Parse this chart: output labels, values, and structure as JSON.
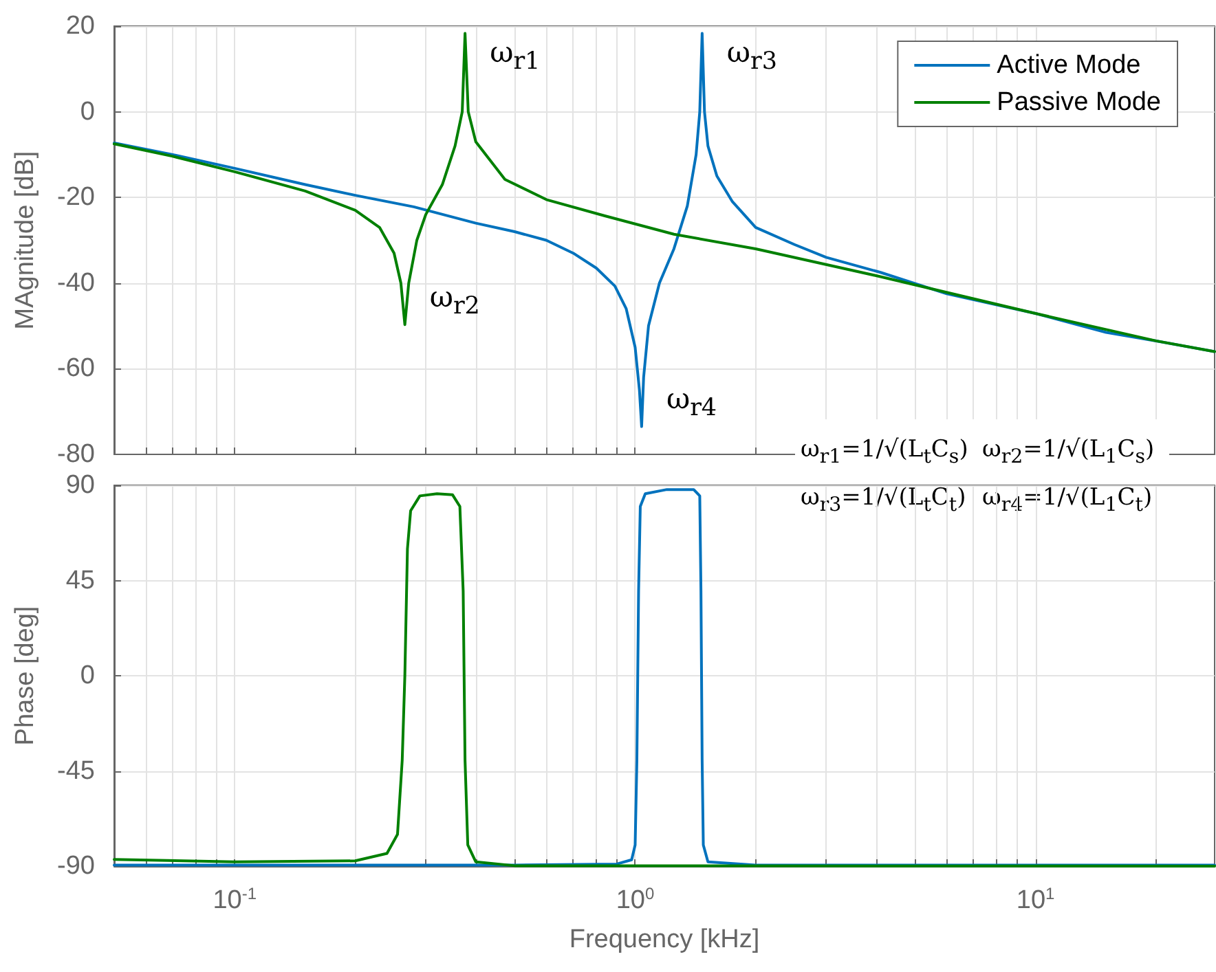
{
  "chart_data": [
    {
      "type": "line",
      "ylabel": "MAgnitude [dB]",
      "xlim": [
        0.05,
        28
      ],
      "ylim": [
        -80,
        20
      ],
      "log": "x",
      "grid": true,
      "legend": "top right",
      "tick_labels": "y",
      "line_style": "solid",
      "marker": "none",
      "yticks": [
        -80,
        -60,
        -40,
        -20,
        0,
        20
      ],
      "xticks": [
        {
          "value": 0.05,
          "label": null
        },
        {
          "value": 0.06,
          "label": null
        },
        {
          "value": 0.07,
          "label": null
        },
        {
          "value": 0.08,
          "label": null
        },
        {
          "value": 0.09,
          "label": null
        },
        {
          "value": 0.1,
          "label": null
        },
        {
          "value": 0.2,
          "label": null
        },
        {
          "value": 0.3,
          "label": null
        },
        {
          "value": 0.4,
          "label": null
        },
        {
          "value": 0.5,
          "label": null
        },
        {
          "value": 0.6,
          "label": null
        },
        {
          "value": 0.7,
          "label": null
        },
        {
          "value": 0.8,
          "label": null
        },
        {
          "value": 0.9,
          "label": null
        },
        {
          "value": 1,
          "label": null
        },
        {
          "value": 2,
          "label": null
        },
        {
          "value": 3,
          "label": null
        },
        {
          "value": 4,
          "label": null
        },
        {
          "value": 5,
          "label": null
        },
        {
          "value": 6,
          "label": null
        },
        {
          "value": 7,
          "label": null
        },
        {
          "value": 8,
          "label": null
        },
        {
          "value": 9,
          "label": null
        },
        {
          "value": 10,
          "label": null
        },
        {
          "value": 20,
          "label": null
        }
      ],
      "series": [
        {
          "name": "Active Mode",
          "color": "#0072bd",
          "x": [
            0.05,
            0.07,
            0.1,
            0.15,
            0.2,
            0.28,
            0.4,
            0.5,
            0.6,
            0.7,
            0.8,
            0.89,
            0.95,
            1.0,
            1.025,
            1.038,
            1.05,
            1.08,
            1.15,
            1.25,
            1.35,
            1.42,
            1.45,
            1.47,
            1.49,
            1.52,
            1.6,
            1.75,
            2.0,
            2.5,
            3,
            4.1,
            6,
            10,
            15,
            20,
            28
          ],
          "values": [
            -7.3,
            -10,
            -13.2,
            -17,
            -19.5,
            -22.2,
            -26,
            -28,
            -30,
            -33,
            -36.5,
            -40.7,
            -46,
            -55,
            -65,
            -73.5,
            -62,
            -50,
            -40,
            -32,
            -22,
            -10,
            0,
            18.3,
            0,
            -8,
            -15,
            -21,
            -27,
            -31,
            -34,
            -37.5,
            -42.5,
            -47.1,
            -51.5,
            -53.5,
            -56
          ]
        },
        {
          "name": "Passive Mode",
          "color": "#008000",
          "x": [
            0.05,
            0.07,
            0.1,
            0.15,
            0.2,
            0.23,
            0.25,
            0.26,
            0.266,
            0.272,
            0.285,
            0.3,
            0.33,
            0.355,
            0.37,
            0.376,
            0.383,
            0.4,
            0.473,
            0.6,
            0.84,
            1.25,
            2.0,
            4.1,
            10,
            20,
            28
          ],
          "values": [
            -7.5,
            -10.4,
            -14,
            -18.5,
            -23,
            -27,
            -33,
            -40,
            -49.7,
            -40,
            -30,
            -24,
            -17,
            -8,
            0,
            18.3,
            0,
            -7,
            -15.8,
            -20.5,
            -24.3,
            -28.6,
            -32,
            -38.5,
            -47.1,
            -53.5,
            -56
          ]
        }
      ],
      "annotations": [
        {
          "text": "ω$_{r1}$",
          "x": 0.376,
          "y": 18.3
        },
        {
          "text": "ω$_{r2}$",
          "x": 0.266,
          "y": -49.7
        },
        {
          "text": "ω$_{r3}$",
          "x": 1.47,
          "y": 18.3
        },
        {
          "text": "ω$_{r4}$",
          "x": 1.038,
          "y": -73.5
        },
        "ω$_{r1}$=1/√(L$_{t}$C$_{s}$)",
        "ω$_{r2}$=1/√(L$_{1}$C$_{s}$)",
        "ω$_{r3}$=1/√(L$_{t}$C$_{t}$)",
        "ω$_{r4}$=1/√(L$_{1}$C$_{t}$)"
      ]
    },
    {
      "type": "line",
      "xlabel": "Frequency [kHz]",
      "ylabel": "Phase [deg]",
      "xlim": [
        0.05,
        28
      ],
      "ylim": [
        -90,
        90
      ],
      "log": "x",
      "grid": true,
      "line_style": "solid",
      "marker": "none",
      "yticks": [
        -90,
        -45,
        0,
        45,
        90
      ],
      "xticks": [
        {
          "value": 0.05,
          "label": null
        },
        {
          "value": 0.06,
          "label": null
        },
        {
          "value": 0.07,
          "label": null
        },
        {
          "value": 0.08,
          "label": null
        },
        {
          "value": 0.09,
          "label": null
        },
        {
          "value": 0.1,
          "label": "10$^{-1}$"
        },
        {
          "value": 0.2,
          "label": null
        },
        {
          "value": 0.3,
          "label": null
        },
        {
          "value": 0.4,
          "label": null
        },
        {
          "value": 0.5,
          "label": null
        },
        {
          "value": 0.6,
          "label": null
        },
        {
          "value": 0.7,
          "label": null
        },
        {
          "value": 0.8,
          "label": null
        },
        {
          "value": 0.9,
          "label": null
        },
        {
          "value": 1,
          "label": "10$^{0}$"
        },
        {
          "value": 2,
          "label": null
        },
        {
          "value": 3,
          "label": null
        },
        {
          "value": 4,
          "label": null
        },
        {
          "value": 5,
          "label": null
        },
        {
          "value": 6,
          "label": null
        },
        {
          "value": 7,
          "label": null
        },
        {
          "value": 8,
          "label": null
        },
        {
          "value": 9,
          "label": null
        },
        {
          "value": 10,
          "label": "10$^{1}$"
        },
        {
          "value": 20,
          "label": null
        }
      ],
      "series": [
        {
          "color": "#0072bd",
          "x": [
            0.05,
            0.5,
            0.9,
            0.98,
            1.0,
            1.01,
            1.02,
            1.03,
            1.06,
            1.2,
            1.4,
            1.45,
            1.46,
            1.47,
            1.48,
            1.52,
            2,
            28
          ],
          "values": [
            -89.5,
            -89.5,
            -89,
            -87,
            -80,
            -40,
            40,
            80,
            86,
            88,
            88,
            85,
            40,
            -40,
            -80,
            -88,
            -89.5,
            -89.5
          ]
        },
        {
          "color": "#008000",
          "x": [
            0.05,
            0.1,
            0.2,
            0.24,
            0.255,
            0.262,
            0.266,
            0.27,
            0.275,
            0.29,
            0.32,
            0.35,
            0.365,
            0.372,
            0.376,
            0.382,
            0.4,
            0.5,
            28
          ],
          "values": [
            -86.8,
            -88,
            -87.5,
            -84,
            -75,
            -40,
            0,
            60,
            78,
            85,
            86,
            85.5,
            80,
            40,
            -40,
            -80,
            -88,
            -89.8,
            -90
          ]
        }
      ]
    }
  ]
}
